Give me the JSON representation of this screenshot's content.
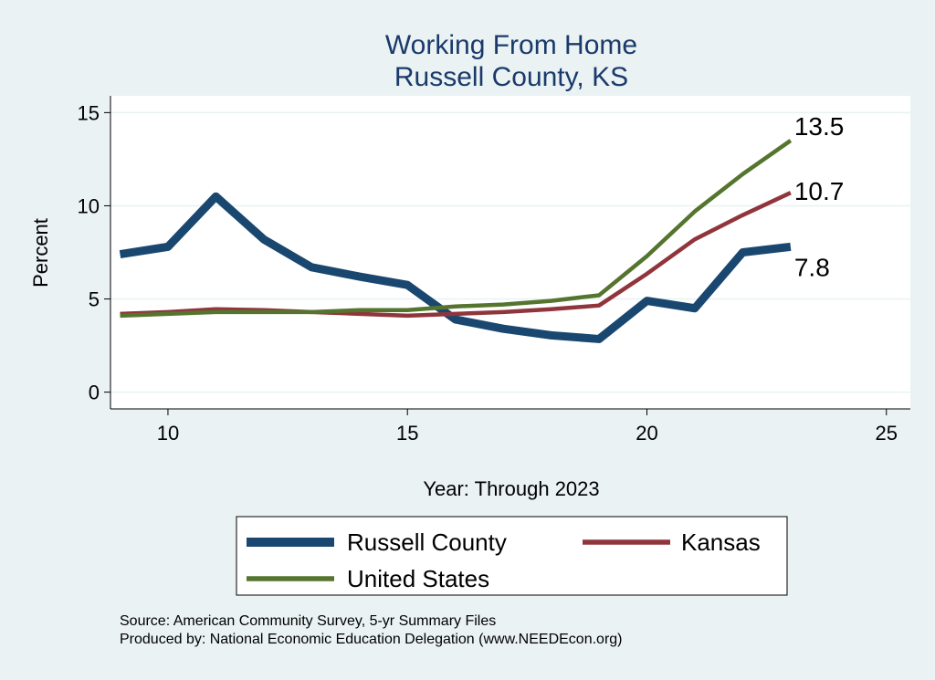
{
  "chart_data": {
    "type": "line",
    "title": "Working From Home",
    "subtitle": "Russell County, KS",
    "xlabel": "Year: Through 2023",
    "ylabel": "Percent",
    "xlim": [
      8.8,
      25.5
    ],
    "ylim": [
      -0.9,
      15.9
    ],
    "xticks": [
      10,
      15,
      20,
      25
    ],
    "yticks": [
      0,
      5,
      10,
      15
    ],
    "grid": true,
    "legend_position": "bottom",
    "x": [
      9,
      10,
      11,
      12,
      13,
      14,
      15,
      16,
      17,
      18,
      19,
      20,
      21,
      22,
      23
    ],
    "series": [
      {
        "name": "Russell County",
        "color": "#1a476f",
        "width": 9,
        "values": [
          7.4,
          7.8,
          10.5,
          8.2,
          6.7,
          6.2,
          5.75,
          3.9,
          3.4,
          3.05,
          2.85,
          4.9,
          4.5,
          7.5,
          7.8
        ],
        "end_label": "7.8"
      },
      {
        "name": "Kansas",
        "color": "#90353b",
        "width": 4.5,
        "values": [
          4.2,
          4.3,
          4.45,
          4.4,
          4.3,
          4.2,
          4.1,
          4.2,
          4.3,
          4.45,
          4.65,
          6.35,
          8.2,
          9.5,
          10.7
        ],
        "end_label": "10.7"
      },
      {
        "name": "United States",
        "color": "#55752f",
        "width": 4.5,
        "values": [
          4.1,
          4.2,
          4.3,
          4.3,
          4.3,
          4.4,
          4.4,
          4.6,
          4.7,
          4.9,
          5.2,
          7.3,
          9.7,
          11.7,
          13.5
        ],
        "end_label": "13.5"
      }
    ]
  },
  "notes": {
    "source": "Source: American Community Survey, 5-yr Summary Files",
    "produced": "Produced by: National Economic Education Delegation (www.NEEDEcon.org)"
  }
}
